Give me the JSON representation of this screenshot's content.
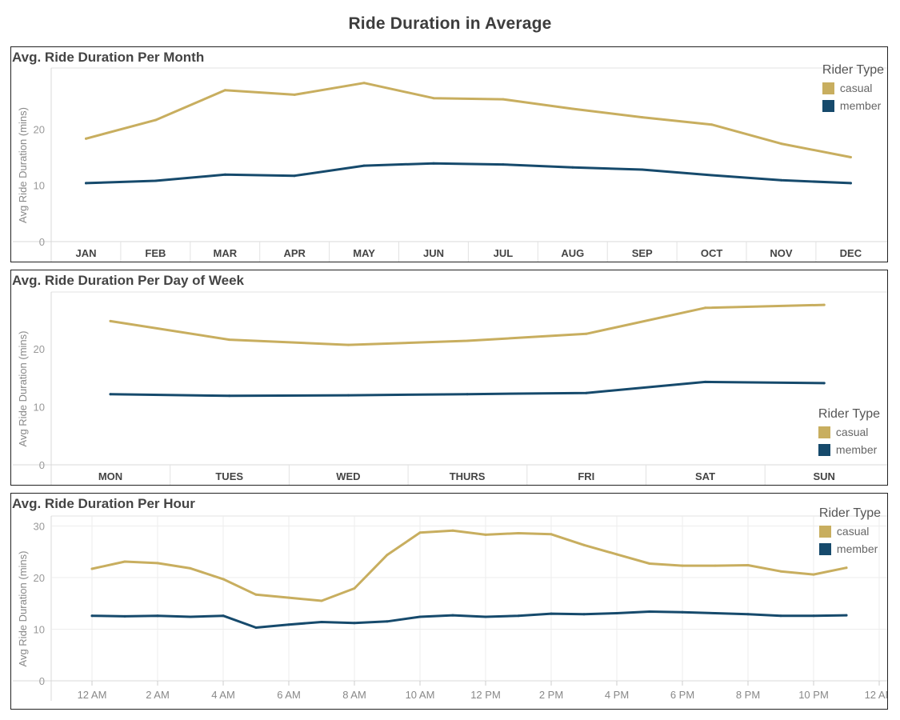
{
  "title": "Ride Duration in Average",
  "colors": {
    "casual": "#c8ae5f",
    "member": "#164a6c"
  },
  "chart_data": [
    {
      "type": "line",
      "title": "Avg. Ride Duration Per Month",
      "ylabel": "Avg Ride Duration (mins)",
      "xlabel": "",
      "categories": [
        "JAN",
        "FEB",
        "MAR",
        "APR",
        "MAY",
        "JUN",
        "JUL",
        "AUG",
        "SEP",
        "OCT",
        "NOV",
        "DEC"
      ],
      "yticks": [
        0,
        10,
        20
      ],
      "ylim": [
        0,
        30
      ],
      "legend": {
        "title": "Rider Type",
        "position": "top-right"
      },
      "series": [
        {
          "name": "casual",
          "values": [
            18.3,
            21.6,
            26.9,
            26.1,
            28.2,
            25.5,
            25.3,
            23.6,
            22.1,
            20.8,
            17.4,
            15.0
          ]
        },
        {
          "name": "member",
          "values": [
            10.4,
            10.8,
            11.9,
            11.7,
            13.5,
            13.9,
            13.7,
            13.2,
            12.8,
            11.8,
            10.9,
            10.4
          ]
        }
      ]
    },
    {
      "type": "line",
      "title": "Avg. Ride Duration Per Day of Week",
      "ylabel": "Avg Ride Duration (mins)",
      "xlabel": "",
      "categories": [
        "MON",
        "TUES",
        "WED",
        "THURS",
        "FRI",
        "SAT",
        "SUN"
      ],
      "yticks": [
        0,
        10,
        20
      ],
      "ylim": [
        0,
        29
      ],
      "legend": {
        "title": "Rider Type",
        "position": "bottom-right"
      },
      "series": [
        {
          "name": "casual",
          "values": [
            24.8,
            21.6,
            20.7,
            21.4,
            22.6,
            27.1,
            27.6
          ]
        },
        {
          "name": "member",
          "values": [
            12.2,
            11.9,
            12.0,
            12.2,
            12.4,
            14.3,
            14.1
          ]
        }
      ]
    },
    {
      "type": "line",
      "title": "Avg. Ride Duration Per Hour",
      "ylabel": "Avg Ride Duration (mins)",
      "xlabel": "",
      "categories": [
        "12 AM",
        "1 AM",
        "2 AM",
        "3 AM",
        "4 AM",
        "5 AM",
        "6 AM",
        "7 AM",
        "8 AM",
        "9 AM",
        "10 AM",
        "11 AM",
        "12 PM",
        "1 PM",
        "2 PM",
        "3 PM",
        "4 PM",
        "5 PM",
        "6 PM",
        "7 PM",
        "8 PM",
        "9 PM",
        "10 PM",
        "11 PM"
      ],
      "xtick_labels": [
        "12 AM",
        "2 AM",
        "4 AM",
        "6 AM",
        "8 AM",
        "10 AM",
        "12 PM",
        "2 PM",
        "4 PM",
        "6 PM",
        "8 PM",
        "10 PM",
        "12 AM"
      ],
      "yticks": [
        0,
        10,
        20,
        30
      ],
      "ylim": [
        0,
        31
      ],
      "grid": true,
      "legend": {
        "title": "Rider Type",
        "position": "top-right"
      },
      "series": [
        {
          "name": "casual",
          "values": [
            21.7,
            23.1,
            22.8,
            21.8,
            19.7,
            16.7,
            16.1,
            15.5,
            17.9,
            24.4,
            28.7,
            29.1,
            28.3,
            28.6,
            28.4,
            26.3,
            24.5,
            22.7,
            22.3,
            22.3,
            22.4,
            21.2,
            20.6,
            21.9
          ]
        },
        {
          "name": "member",
          "values": [
            12.6,
            12.5,
            12.6,
            12.4,
            12.6,
            10.3,
            10.9,
            11.4,
            11.2,
            11.5,
            12.4,
            12.7,
            12.4,
            12.6,
            13.0,
            12.9,
            13.1,
            13.4,
            13.3,
            13.1,
            12.9,
            12.6,
            12.6,
            12.7
          ]
        }
      ]
    }
  ]
}
